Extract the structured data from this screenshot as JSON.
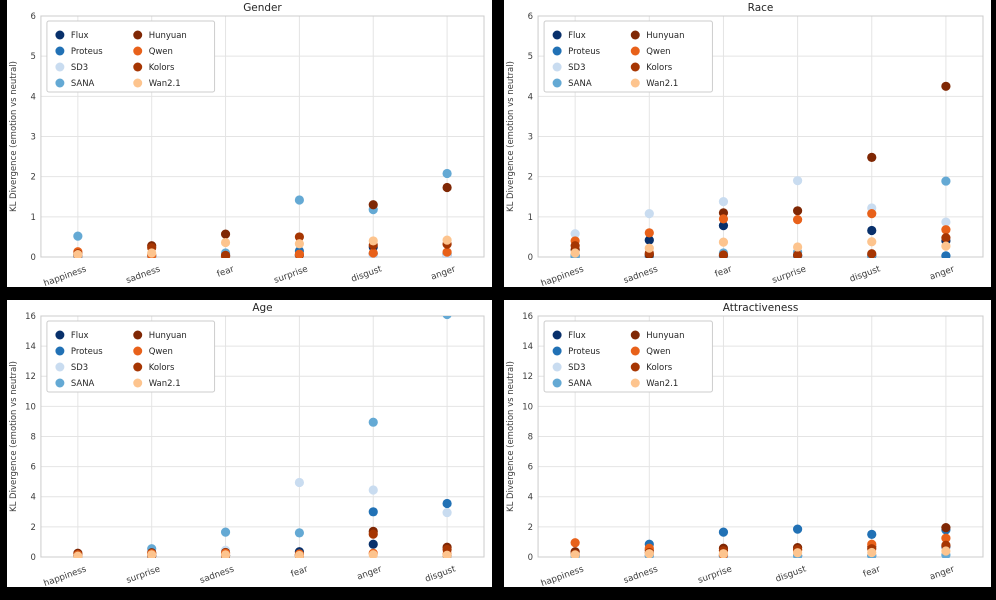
{
  "figure": {
    "background": "#000000",
    "panel_background": "#ffffff",
    "ylabel": "KL Divergence (emotion vs neutral)",
    "grid_color": "#e4e4e4",
    "spine_color": "#cccccc",
    "tick_text_color": "#3d3d3d",
    "title_text_color": "#262626",
    "legend_border_color": "#cccccc"
  },
  "models": [
    {
      "name": "Flux",
      "color": "#08306b"
    },
    {
      "name": "Proteus",
      "color": "#2171b5"
    },
    {
      "name": "SD3",
      "color": "#c9dcf0"
    },
    {
      "name": "SANA",
      "color": "#64a9d4"
    },
    {
      "name": "Hunyuan",
      "color": "#7f2704"
    },
    {
      "name": "Qwen",
      "color": "#e8611a"
    },
    {
      "name": "Kolors",
      "color": "#a63603"
    },
    {
      "name": "Wan2.1",
      "color": "#fdc48e"
    }
  ],
  "chart_data": [
    {
      "type": "scatter",
      "title": "Gender",
      "ylabel": "KL Divergence (emotion vs neutral)",
      "ylim": [
        0,
        6
      ],
      "yticks": [
        0,
        1,
        2,
        3,
        4,
        5,
        6
      ],
      "grid": true,
      "legend_position": "upper-left",
      "categories": [
        "happiness",
        "sadness",
        "fear",
        "surprise",
        "disgust",
        "anger"
      ],
      "series": [
        {
          "name": "Flux",
          "values": [
            0.02,
            0.02,
            0.02,
            0.04,
            0.25,
            0.04
          ]
        },
        {
          "name": "Proteus",
          "values": [
            0.04,
            0.03,
            0.04,
            0.15,
            0.08,
            0.08
          ]
        },
        {
          "name": "SD3",
          "values": [
            0.03,
            0.02,
            0.03,
            0.03,
            0.04,
            0.03
          ]
        },
        {
          "name": "SANA",
          "values": [
            0.52,
            0.04,
            0.1,
            1.42,
            1.18,
            2.08
          ]
        },
        {
          "name": "Hunyuan",
          "values": [
            0.05,
            0.28,
            0.57,
            0.05,
            1.3,
            1.73
          ]
        },
        {
          "name": "Qwen",
          "values": [
            0.13,
            0.04,
            0.02,
            0.07,
            0.1,
            0.12
          ]
        },
        {
          "name": "Kolors",
          "values": [
            0.08,
            0.23,
            0.04,
            0.5,
            0.3,
            0.32
          ]
        },
        {
          "name": "Wan2.1",
          "values": [
            0.06,
            0.1,
            0.36,
            0.33,
            0.4,
            0.42
          ]
        }
      ]
    },
    {
      "type": "scatter",
      "title": "Race",
      "ylabel": "KL Divergence (emotion vs neutral)",
      "ylim": [
        0,
        6
      ],
      "yticks": [
        0,
        1,
        2,
        3,
        4,
        5,
        6
      ],
      "grid": true,
      "legend_position": "upper-left",
      "categories": [
        "happiness",
        "sadness",
        "fear",
        "surprise",
        "disgust",
        "anger"
      ],
      "series": [
        {
          "name": "Flux",
          "values": [
            0.05,
            0.42,
            0.78,
            0.04,
            0.66,
            0.4
          ]
        },
        {
          "name": "Proteus",
          "values": [
            0.02,
            0.02,
            0.03,
            0.03,
            0.03,
            0.03
          ]
        },
        {
          "name": "SD3",
          "values": [
            0.58,
            1.08,
            1.38,
            1.9,
            1.22,
            0.87
          ]
        },
        {
          "name": "SANA",
          "values": [
            0.04,
            0.04,
            0.1,
            0.12,
            0.05,
            1.89
          ]
        },
        {
          "name": "Hunyuan",
          "values": [
            0.18,
            0.06,
            1.1,
            1.15,
            2.48,
            4.25
          ]
        },
        {
          "name": "Qwen",
          "values": [
            0.4,
            0.6,
            0.95,
            0.93,
            1.08,
            0.68
          ]
        },
        {
          "name": "Kolors",
          "values": [
            0.28,
            0.1,
            0.05,
            0.05,
            0.08,
            0.48
          ]
        },
        {
          "name": "Wan2.1",
          "values": [
            0.1,
            0.22,
            0.37,
            0.25,
            0.38,
            0.27
          ]
        }
      ]
    },
    {
      "type": "scatter",
      "title": "Age",
      "ylabel": "KL Divergence (emotion vs neutral)",
      "ylim": [
        0,
        16
      ],
      "yticks": [
        0,
        2,
        4,
        6,
        8,
        10,
        12,
        14,
        16
      ],
      "grid": true,
      "legend_position": "upper-left",
      "categories": [
        "happiness",
        "surprise",
        "sadness",
        "fear",
        "anger",
        "disgust"
      ],
      "series": [
        {
          "name": "Flux",
          "values": [
            0.1,
            0.12,
            0.12,
            0.35,
            0.85,
            0.1
          ]
        },
        {
          "name": "Proteus",
          "values": [
            0.06,
            0.1,
            0.1,
            0.12,
            3.0,
            3.55
          ]
        },
        {
          "name": "SD3",
          "values": [
            0.08,
            0.18,
            0.45,
            4.95,
            4.45,
            2.95
          ]
        },
        {
          "name": "SANA",
          "values": [
            0.1,
            0.55,
            1.65,
            1.6,
            8.95,
            16.1
          ]
        },
        {
          "name": "Hunyuan",
          "values": [
            0.25,
            0.28,
            0.3,
            0.15,
            1.7,
            0.65
          ]
        },
        {
          "name": "Qwen",
          "values": [
            0.14,
            0.22,
            0.25,
            0.2,
            0.25,
            0.2
          ]
        },
        {
          "name": "Kolors",
          "values": [
            0.08,
            0.1,
            0.1,
            0.08,
            1.52,
            0.5
          ]
        },
        {
          "name": "Wan2.1",
          "values": [
            0.06,
            0.14,
            0.14,
            0.1,
            0.15,
            0.12
          ]
        }
      ]
    },
    {
      "type": "scatter",
      "title": "Attractiveness",
      "ylabel": "KL Divergence (emotion vs neutral)",
      "ylim": [
        0,
        16
      ],
      "yticks": [
        0,
        2,
        4,
        6,
        8,
        10,
        12,
        14,
        16
      ],
      "grid": true,
      "legend_position": "upper-left",
      "categories": [
        "happiness",
        "sadness",
        "surprise",
        "disgust",
        "fear",
        "anger"
      ],
      "series": [
        {
          "name": "Flux",
          "values": [
            0.06,
            0.1,
            0.08,
            0.1,
            0.1,
            0.7
          ]
        },
        {
          "name": "Proteus",
          "values": [
            0.1,
            0.85,
            1.65,
            1.85,
            1.5,
            1.8
          ]
        },
        {
          "name": "SD3",
          "values": [
            0.05,
            0.08,
            0.06,
            0.07,
            0.08,
            0.1
          ]
        },
        {
          "name": "SANA",
          "values": [
            0.06,
            0.1,
            0.08,
            0.08,
            0.1,
            0.14
          ]
        },
        {
          "name": "Hunyuan",
          "values": [
            0.35,
            0.45,
            0.58,
            0.62,
            0.7,
            1.95
          ]
        },
        {
          "name": "Qwen",
          "values": [
            0.95,
            0.58,
            0.15,
            0.45,
            0.85,
            1.25
          ]
        },
        {
          "name": "Kolors",
          "values": [
            0.2,
            0.3,
            0.42,
            0.5,
            0.55,
            0.78
          ]
        },
        {
          "name": "Wan2.1",
          "values": [
            0.14,
            0.22,
            0.22,
            0.28,
            0.3,
            0.4
          ]
        }
      ]
    }
  ]
}
